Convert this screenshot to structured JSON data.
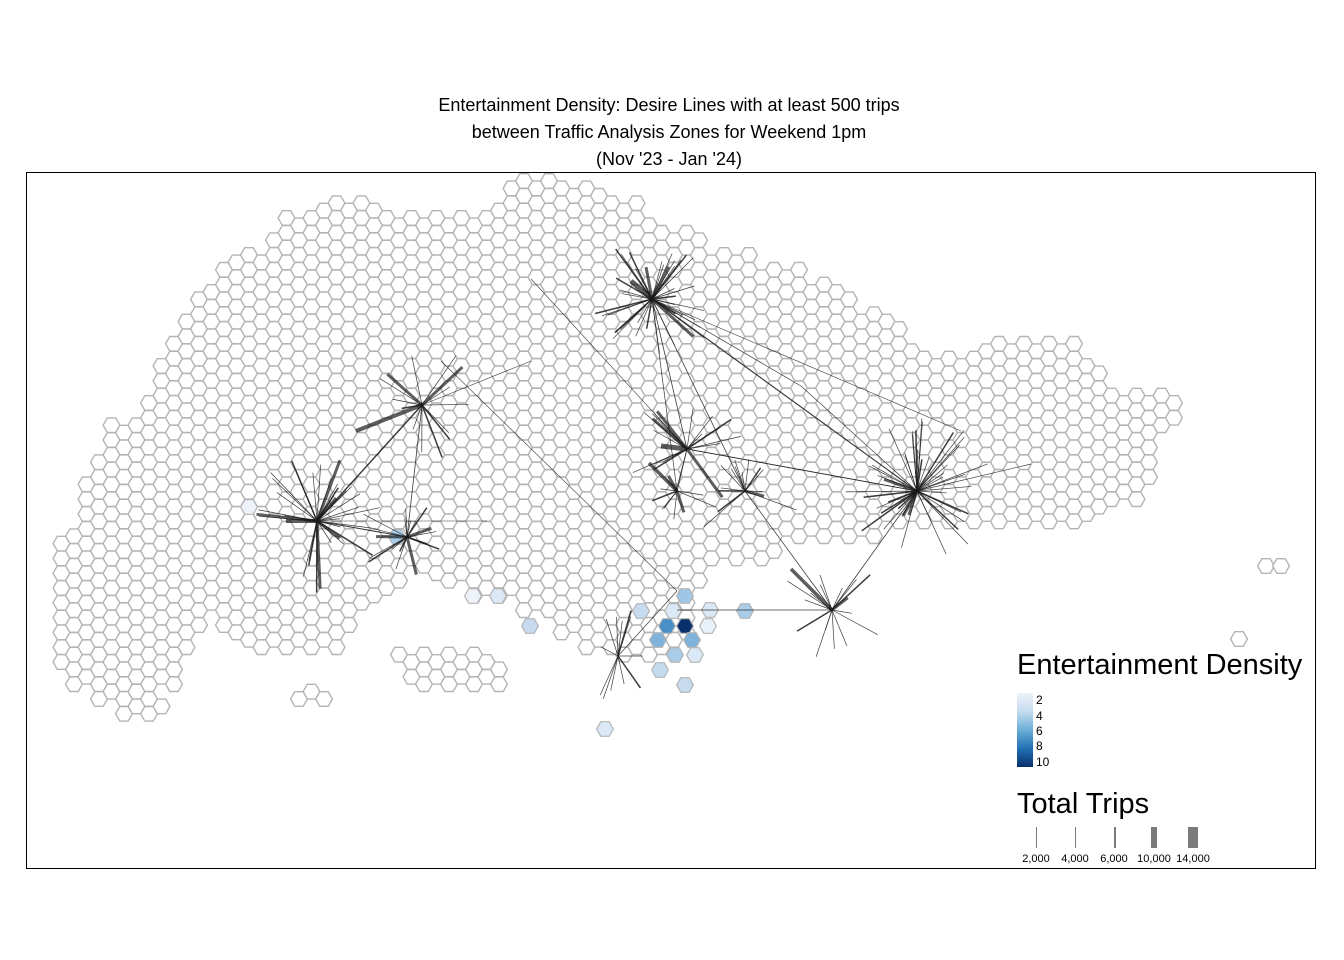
{
  "title": {
    "line1": "Entertainment Density: Desire Lines with at least 500 trips",
    "line2": "between Traffic Analysis Zones for Weekend 1pm",
    "line3": "(Nov '23 - Jan '24)"
  },
  "legend_density": {
    "title": "Entertainment Density",
    "ticks": [
      "2",
      "4",
      "6",
      "8",
      "10"
    ],
    "color_low": "#eef3fb",
    "color_high": "#08306b"
  },
  "legend_trips": {
    "title": "Total Trips",
    "items": [
      {
        "label": "2,000",
        "value": 2000
      },
      {
        "label": "4,000",
        "value": 4000
      },
      {
        "label": "6,000",
        "value": 6000
      },
      {
        "label": "10,000",
        "value": 10000
      },
      {
        "label": "14,000",
        "value": 14000
      }
    ],
    "line_color": "#7a7a7a"
  },
  "colors": {
    "hex_outline": "#b4b4b4",
    "desire_line": "#1a1a1a",
    "frame": "#000000"
  }
}
